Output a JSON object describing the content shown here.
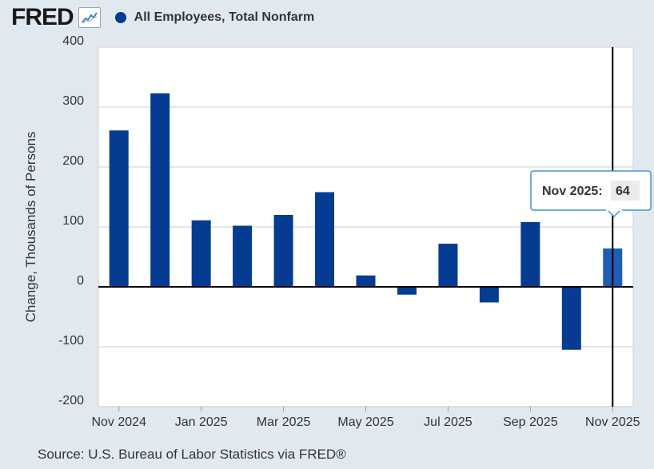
{
  "header": {
    "logo_text": "FRED",
    "logo_icon": "line-chart-icon",
    "legend_label": "All Employees, Total Nonfarm",
    "legend_color": "#053c91"
  },
  "source": "Source: U.S. Bureau of Labor Statistics via FRED®",
  "tooltip": {
    "label": "Nov 2025:",
    "value": "64"
  },
  "chart_data": {
    "type": "bar",
    "title": "All Employees, Total Nonfarm",
    "xlabel": "",
    "ylabel": "Change, Thousands of Persons",
    "ylim": [
      -200,
      400
    ],
    "yticks": [
      -200,
      -100,
      0,
      100,
      200,
      300,
      400
    ],
    "categories": [
      "Nov 2024",
      "Dec 2024",
      "Jan 2025",
      "Feb 2025",
      "Mar 2025",
      "Apr 2025",
      "May 2025",
      "Jun 2025",
      "Jul 2025",
      "Aug 2025",
      "Sep 2025",
      "Oct 2025",
      "Nov 2025"
    ],
    "values": [
      261,
      323,
      111,
      102,
      120,
      158,
      19,
      -13,
      72,
      -26,
      108,
      -105,
      64
    ],
    "xtick_labels": [
      "Nov 2024",
      "Jan 2025",
      "Mar 2025",
      "May 2025",
      "Jul 2025",
      "Sep 2025",
      "Nov 2025"
    ],
    "xtick_indices": [
      0,
      2,
      4,
      6,
      8,
      10,
      12
    ],
    "highlight_index": 12,
    "bar_color": "#053c91",
    "highlight_color": "#1e5db3",
    "grid": true
  }
}
